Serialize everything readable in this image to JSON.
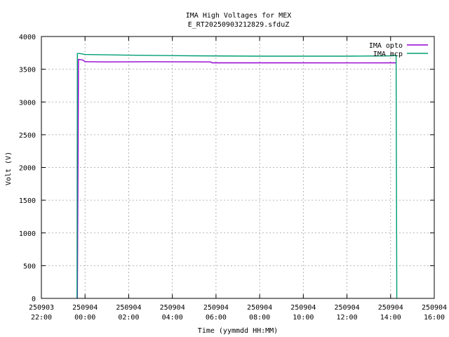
{
  "chart_data": {
    "type": "line",
    "title": "IMA High Voltages for MEX",
    "subtitle": "E_RT20250903212829.sfduZ",
    "xlabel": "Time (yymmdd HH:MM)",
    "ylabel": "Volt (V)",
    "xlim": [
      "250903 22:00",
      "250904 16:00"
    ],
    "ylim": [
      0,
      4000
    ],
    "grid": true,
    "legend_position": "top-right",
    "x_ticks": [
      {
        "date": "250903",
        "time": "22:00"
      },
      {
        "date": "250904",
        "time": "00:00"
      },
      {
        "date": "250904",
        "time": "02:00"
      },
      {
        "date": "250904",
        "time": "04:00"
      },
      {
        "date": "250904",
        "time": "06:00"
      },
      {
        "date": "250904",
        "time": "08:00"
      },
      {
        "date": "250904",
        "time": "10:00"
      },
      {
        "date": "250904",
        "time": "12:00"
      },
      {
        "date": "250904",
        "time": "14:00"
      },
      {
        "date": "250904",
        "time": "16:00"
      }
    ],
    "y_ticks": [
      "0",
      "500",
      "1000",
      "1500",
      "2000",
      "2500",
      "3000",
      "3500",
      "4000"
    ],
    "series": [
      {
        "name": "IMA opto",
        "color": "#9400d3",
        "points": [
          [
            "250903 23:38",
            0
          ],
          [
            "250903 23:39",
            180
          ],
          [
            "250903 23:39",
            0
          ],
          [
            "250903 23:42",
            3650
          ],
          [
            "250903 23:55",
            3640
          ],
          [
            "250904 00:00",
            3615
          ],
          [
            "250904 01:00",
            3612
          ],
          [
            "250904 03:00",
            3615
          ],
          [
            "250904 05:45",
            3612
          ],
          [
            "250904 05:50",
            3598
          ],
          [
            "250904 09:00",
            3598
          ],
          [
            "250904 13:00",
            3597
          ],
          [
            "250904 14:15",
            3598
          ]
        ]
      },
      {
        "name": "IMA mcp",
        "color": "#009e73",
        "points": [
          [
            "250903 23:38",
            0
          ],
          [
            "250903 23:39",
            3740
          ],
          [
            "250903 23:45",
            3740
          ],
          [
            "250904 00:00",
            3725
          ],
          [
            "250904 02:00",
            3715
          ],
          [
            "250904 05:00",
            3705
          ],
          [
            "250904 08:00",
            3700
          ],
          [
            "250904 12:00",
            3700
          ],
          [
            "250904 14:00",
            3705
          ],
          [
            "250904 14:15",
            3710
          ],
          [
            "250904 14:17",
            0
          ]
        ]
      }
    ]
  }
}
